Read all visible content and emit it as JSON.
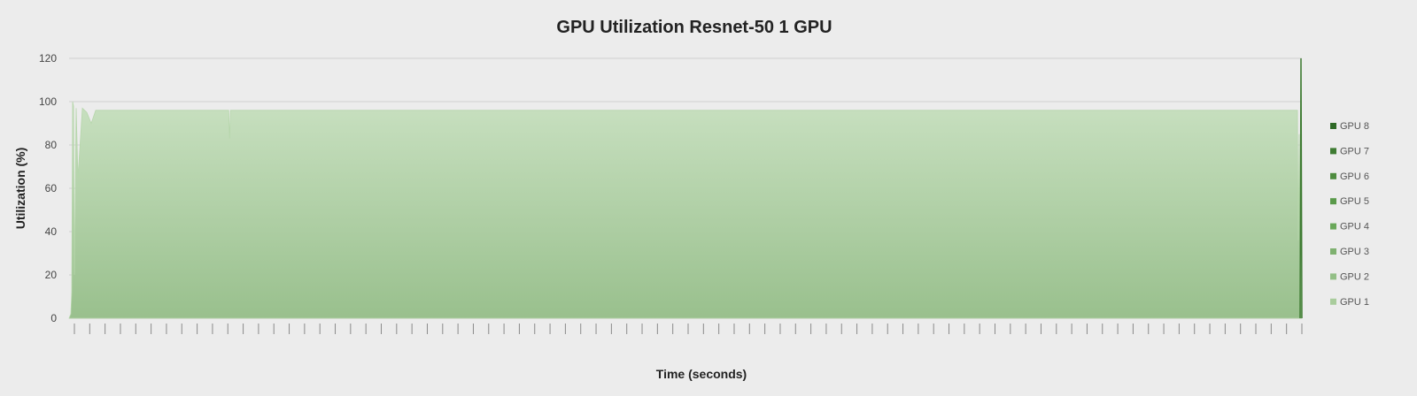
{
  "chart_data": {
    "type": "area",
    "title": "GPU Utilization Resnet-50 1 GPU",
    "xlabel": "Time (seconds)",
    "ylabel": "Utilization (%)",
    "ylim": [
      0,
      120
    ],
    "yticks": [
      0,
      20,
      40,
      60,
      80,
      100,
      120
    ],
    "grid": "horizontal",
    "legend_position": "right",
    "series": [
      {
        "name": "GPU 1",
        "color": "#a9cc9c",
        "x": [
          0,
          2,
          3,
          4,
          5,
          6,
          8,
          10,
          15,
          20,
          25,
          30,
          60,
          100,
          140,
          180,
          181,
          182,
          200,
          250,
          300,
          350,
          400,
          450,
          500,
          550,
          600,
          650,
          700,
          750,
          800,
          850,
          900,
          950,
          1000,
          1050,
          1100,
          1150,
          1200,
          1250,
          1300,
          1350,
          1385,
          1386,
          1387,
          1388,
          1390
        ],
        "values": [
          0,
          2,
          12,
          100,
          98,
          20,
          97,
          65,
          97,
          95,
          90,
          96,
          96,
          96,
          96,
          96,
          83,
          96,
          96,
          96,
          96,
          96,
          96,
          96,
          96,
          96,
          96,
          96,
          96,
          96,
          96,
          96,
          96,
          96,
          96,
          96,
          96,
          96,
          96,
          96,
          96,
          96,
          96,
          36,
          85,
          30,
          0
        ]
      },
      {
        "name": "GPU 2",
        "color": "#93bf86",
        "x": [],
        "values": []
      },
      {
        "name": "GPU 3",
        "color": "#7fb170",
        "x": [],
        "values": []
      },
      {
        "name": "GPU 4",
        "color": "#6aa85a",
        "x": [],
        "values": []
      },
      {
        "name": "GPU 5",
        "color": "#5a9a4a",
        "x": [],
        "values": []
      },
      {
        "name": "GPU 6",
        "color": "#4e8c3f",
        "x": [],
        "values": []
      },
      {
        "name": "GPU 7",
        "color": "#3f7c33",
        "x": [
          1388,
          1389,
          1390
        ],
        "values": [
          0,
          120,
          0
        ]
      },
      {
        "name": "GPU 8",
        "color": "#2f6a27",
        "x": [],
        "values": []
      }
    ]
  }
}
